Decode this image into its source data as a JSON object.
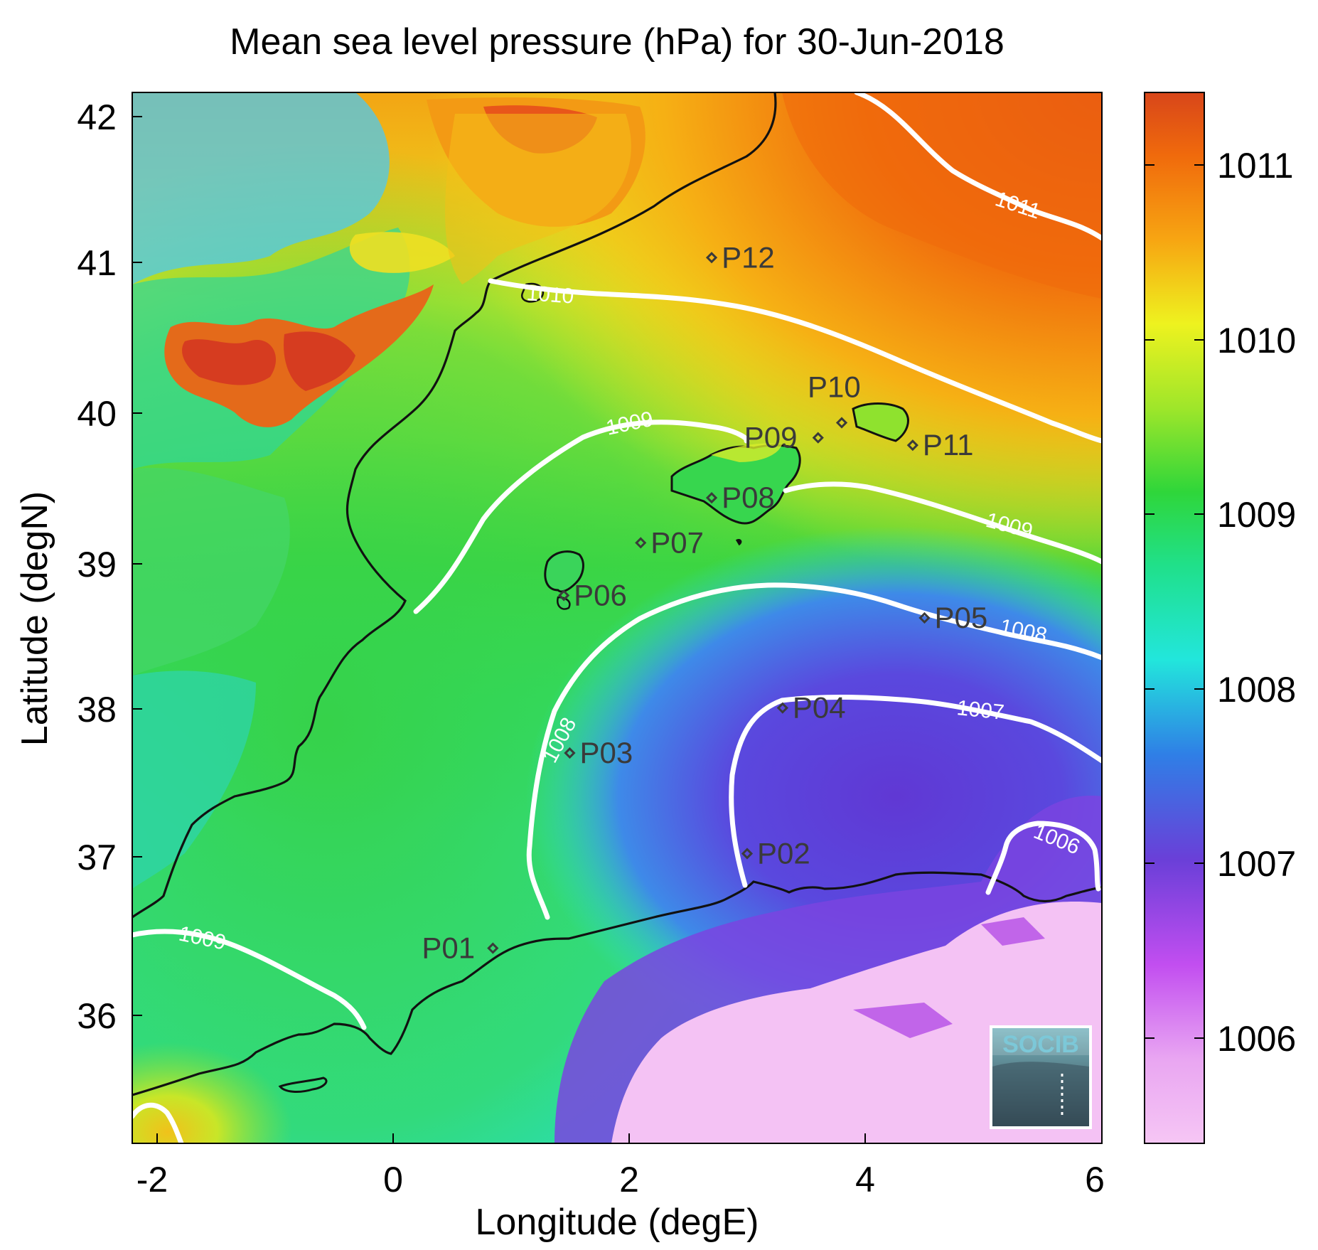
{
  "title": "Mean sea level pressure (hPa) for 30-Jun-2018",
  "xlabel": "Longitude (degE)",
  "ylabel": "Latitude (degN)",
  "x_ticks": [
    "-2",
    "0",
    "2",
    "4",
    "6"
  ],
  "y_ticks": [
    "42",
    "41",
    "40",
    "39",
    "38",
    "37",
    "36"
  ],
  "colorbar": {
    "ticks": [
      "1011",
      "1010",
      "1009",
      "1008",
      "1007",
      "1006"
    ],
    "range": [
      1005.4,
      1011.4
    ],
    "stops": [
      "#f6c6f4",
      "#c24ef0",
      "#6a3fd8",
      "#2f7fe6",
      "#22e6dc",
      "#2fd63a",
      "#9fe62a",
      "#eef21f",
      "#f7a512",
      "#f06a0c",
      "#d8461a"
    ]
  },
  "map": {
    "lon_range": [
      -2.2,
      6.0
    ],
    "lat_range": [
      35.2,
      42.2
    ],
    "contour_labels": [
      "1011",
      "1010",
      "1009",
      "1009",
      "1009",
      "1008",
      "1008",
      "1007",
      "1006"
    ],
    "stations": [
      {
        "name": "P01",
        "lon": 0.85,
        "lat": 36.5
      },
      {
        "name": "P02",
        "lon": 3.0,
        "lat": 37.13
      },
      {
        "name": "P03",
        "lon": 1.5,
        "lat": 37.8
      },
      {
        "name": "P04",
        "lon": 3.3,
        "lat": 38.1
      },
      {
        "name": "P05",
        "lon": 4.5,
        "lat": 38.7
      },
      {
        "name": "P06",
        "lon": 1.45,
        "lat": 38.85
      },
      {
        "name": "P07",
        "lon": 2.1,
        "lat": 39.2
      },
      {
        "name": "P08",
        "lon": 2.7,
        "lat": 39.5
      },
      {
        "name": "P09",
        "lon": 3.6,
        "lat": 39.9
      },
      {
        "name": "P10",
        "lon": 3.8,
        "lat": 40.0
      },
      {
        "name": "P11",
        "lon": 4.4,
        "lat": 39.85
      },
      {
        "name": "P12",
        "lon": 2.7,
        "lat": 41.1
      }
    ]
  },
  "logo": "SOCIB"
}
